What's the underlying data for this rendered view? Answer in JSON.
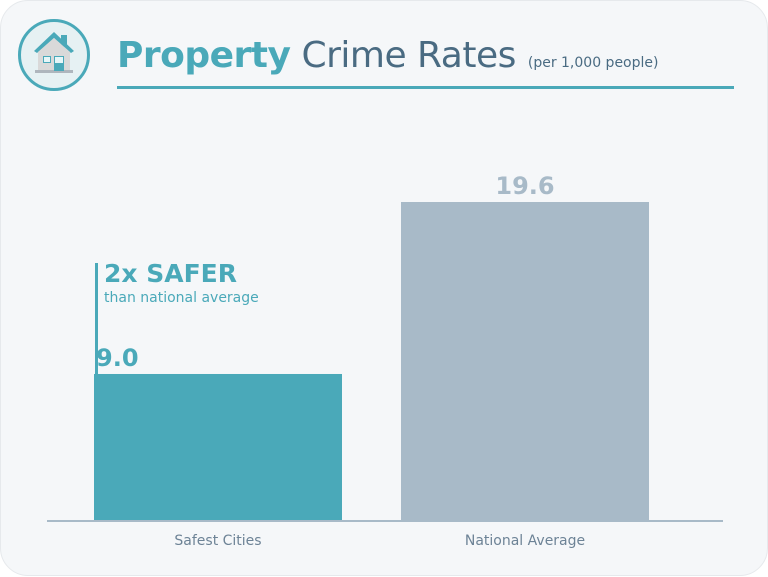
{
  "header": {
    "title_bold": "Property",
    "title_rest": "Crime Rates",
    "subtitle": "(per 1,000 people)",
    "icon": "house-icon"
  },
  "annotation": {
    "headline": "2x SAFER",
    "subtext": "than national average"
  },
  "colors": {
    "accent": "#4aa9b9",
    "secondary": "#a8bac8",
    "text": "#4a6b82"
  },
  "chart_data": {
    "type": "bar",
    "title": "Property Crime Rates (per 1,000 people)",
    "categories": [
      "Safest Cities",
      "National Average"
    ],
    "values": [
      9.0,
      19.6
    ],
    "value_labels": [
      "9.0",
      "19.6"
    ],
    "colors": [
      "#4aa9b9",
      "#a8bac8"
    ],
    "xlabel": "",
    "ylabel": "",
    "ylim": [
      0,
      19.6
    ],
    "grid": false
  }
}
